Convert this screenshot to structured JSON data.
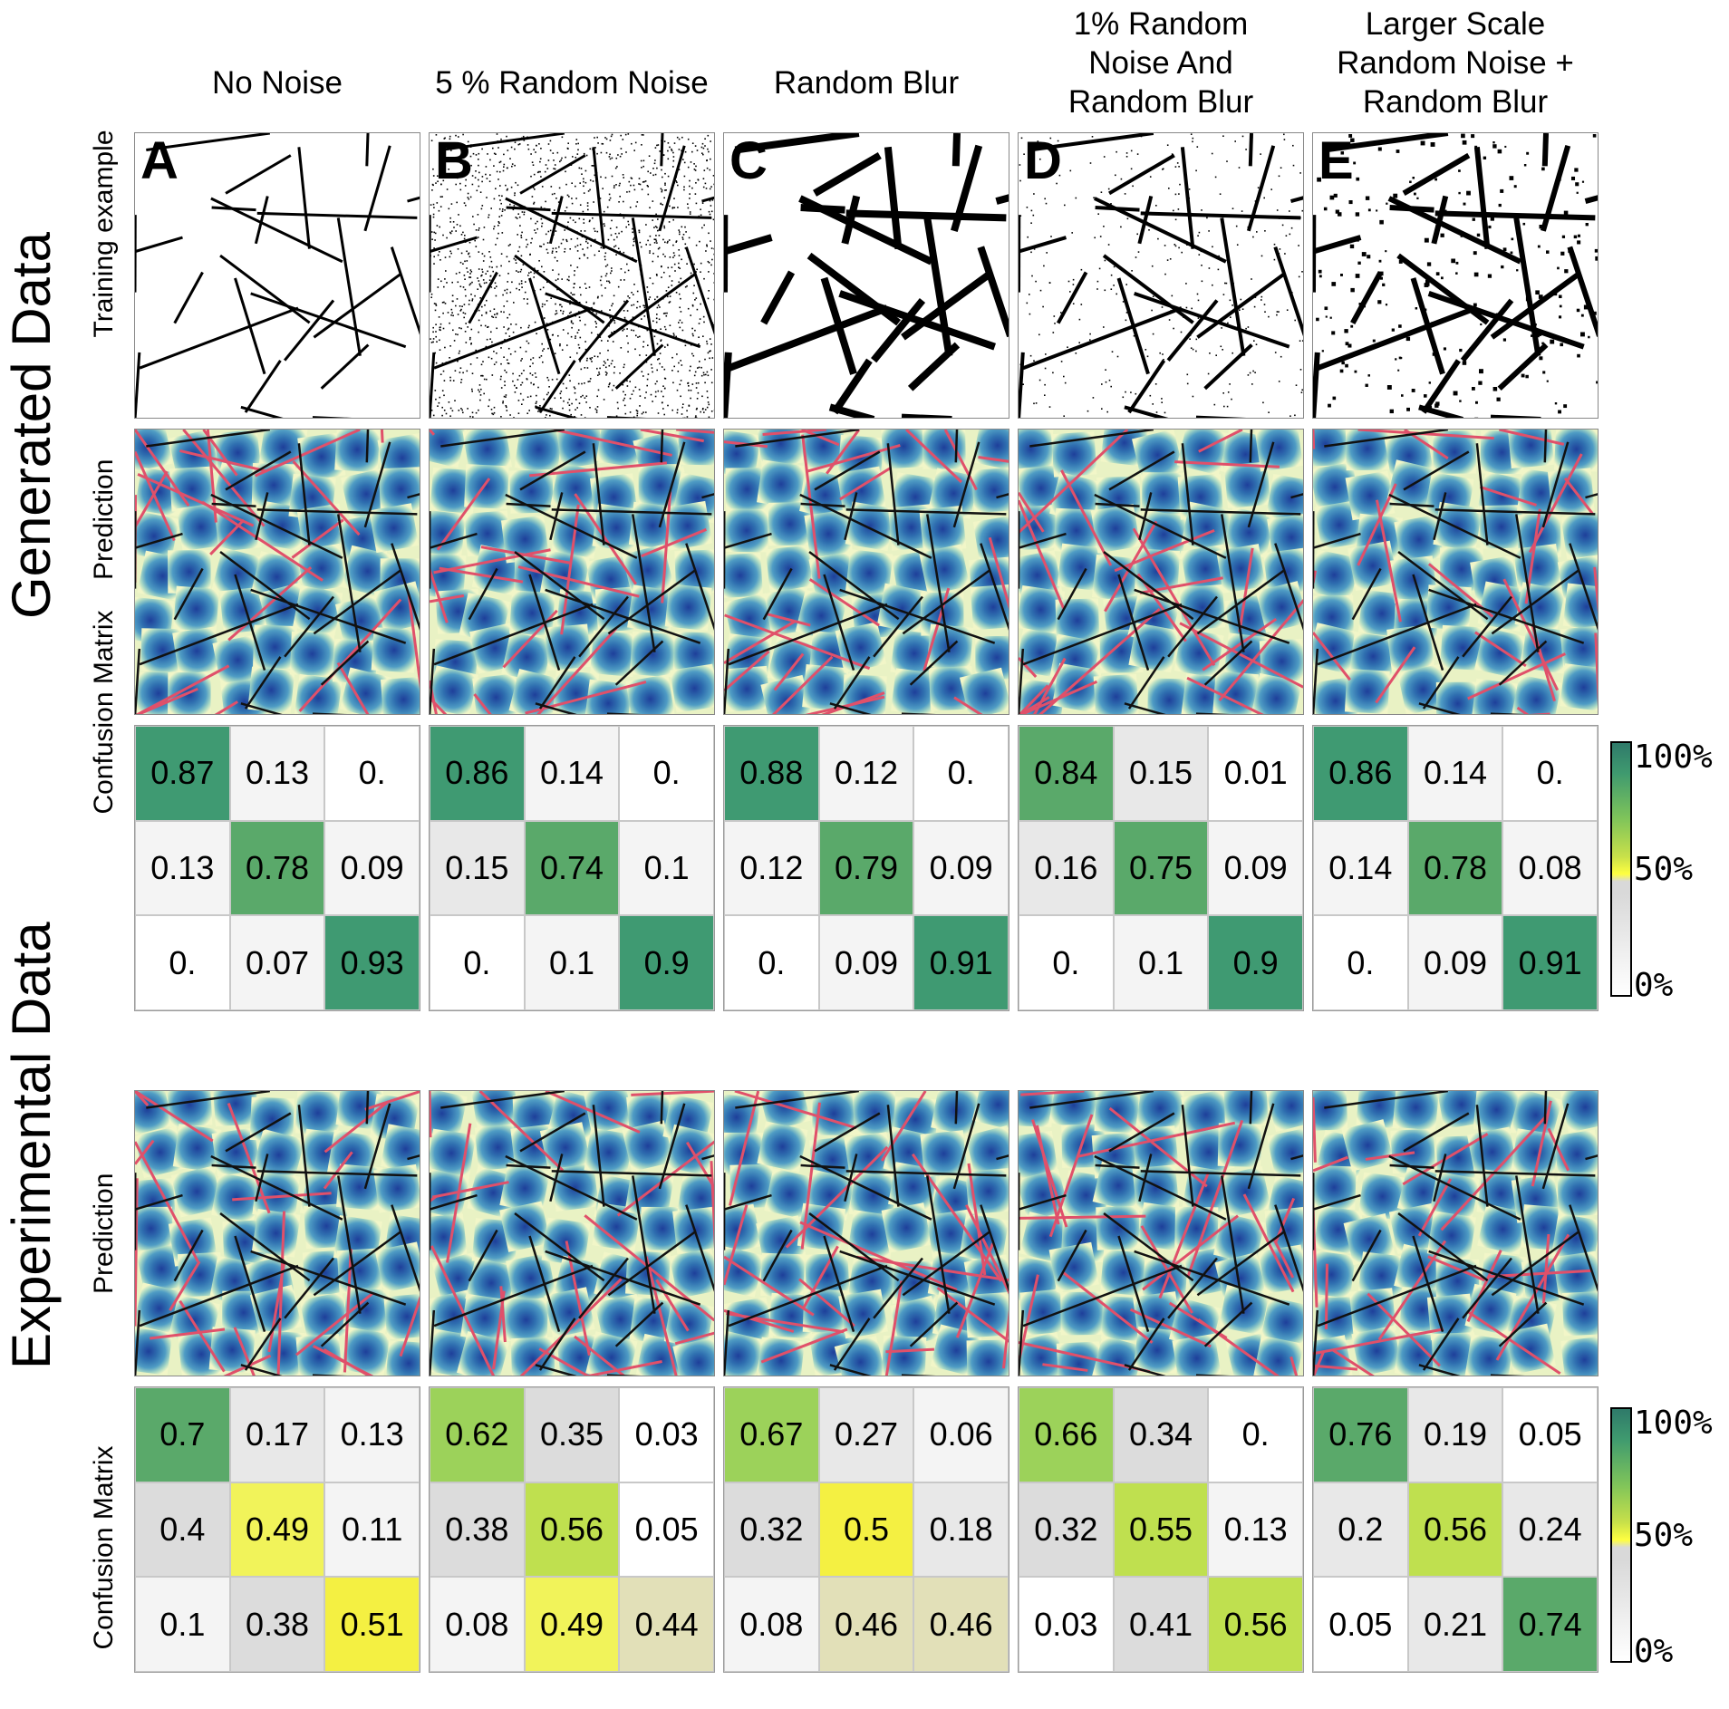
{
  "columns": [
    {
      "letter": "A",
      "title": "No Noise"
    },
    {
      "letter": "B",
      "title": "5 % Random Noise"
    },
    {
      "letter": "C",
      "title": "Random Blur"
    },
    {
      "letter": "D",
      "title": "1% Random\nNoise And\nRandom Blur"
    },
    {
      "letter": "E",
      "title": "Larger Scale\nRandom Noise +\nRandom Blur"
    }
  ],
  "sections": {
    "generated": "Generated Data",
    "experimental": "Experimental Data"
  },
  "row_labels": {
    "training": "Training example",
    "prediction": "Prediction",
    "confusion": "Confusion Matrix"
  },
  "colorbar": {
    "top": "100%",
    "mid": "50%",
    "bottom": "0%"
  },
  "chart_data": [
    {
      "type": "heatmap",
      "section": "Generated Data",
      "matrices": [
        {
          "panel": "A",
          "values": [
            [
              "0.87",
              "0.13",
              "0."
            ],
            [
              "0.13",
              "0.78",
              "0.09"
            ],
            [
              "0.",
              "0.07",
              "0.93"
            ]
          ]
        },
        {
          "panel": "B",
          "values": [
            [
              "0.86",
              "0.14",
              "0."
            ],
            [
              "0.15",
              "0.74",
              "0.1"
            ],
            [
              "0.",
              "0.1",
              "0.9"
            ]
          ]
        },
        {
          "panel": "C",
          "values": [
            [
              "0.88",
              "0.12",
              "0."
            ],
            [
              "0.12",
              "0.79",
              "0.09"
            ],
            [
              "0.",
              "0.09",
              "0.91"
            ]
          ]
        },
        {
          "panel": "D",
          "values": [
            [
              "0.84",
              "0.15",
              "0.01"
            ],
            [
              "0.16",
              "0.75",
              "0.09"
            ],
            [
              "0.",
              "0.1",
              "0.9"
            ]
          ]
        },
        {
          "panel": "E",
          "values": [
            [
              "0.86",
              "0.14",
              "0."
            ],
            [
              "0.14",
              "0.78",
              "0.08"
            ],
            [
              "0.",
              "0.09",
              "0.91"
            ]
          ]
        }
      ]
    },
    {
      "type": "heatmap",
      "section": "Experimental Data",
      "matrices": [
        {
          "panel": "A",
          "values": [
            [
              "0.7",
              "0.17",
              "0.13"
            ],
            [
              "0.4",
              "0.49",
              "0.11"
            ],
            [
              "0.1",
              "0.38",
              "0.51"
            ]
          ]
        },
        {
          "panel": "B",
          "values": [
            [
              "0.62",
              "0.35",
              "0.03"
            ],
            [
              "0.38",
              "0.56",
              "0.05"
            ],
            [
              "0.08",
              "0.49",
              "0.44"
            ]
          ]
        },
        {
          "panel": "C",
          "values": [
            [
              "0.67",
              "0.27",
              "0.06"
            ],
            [
              "0.32",
              "0.5",
              "0.18"
            ],
            [
              "0.08",
              "0.46",
              "0.46"
            ]
          ]
        },
        {
          "panel": "D",
          "values": [
            [
              "0.66",
              "0.34",
              "0."
            ],
            [
              "0.32",
              "0.55",
              "0.13"
            ],
            [
              "0.03",
              "0.41",
              "0.56"
            ]
          ]
        },
        {
          "panel": "E",
          "values": [
            [
              "0.76",
              "0.19",
              "0.05"
            ],
            [
              "0.2",
              "0.56",
              "0.24"
            ],
            [
              "0.05",
              "0.21",
              "0.74"
            ]
          ]
        }
      ]
    }
  ]
}
